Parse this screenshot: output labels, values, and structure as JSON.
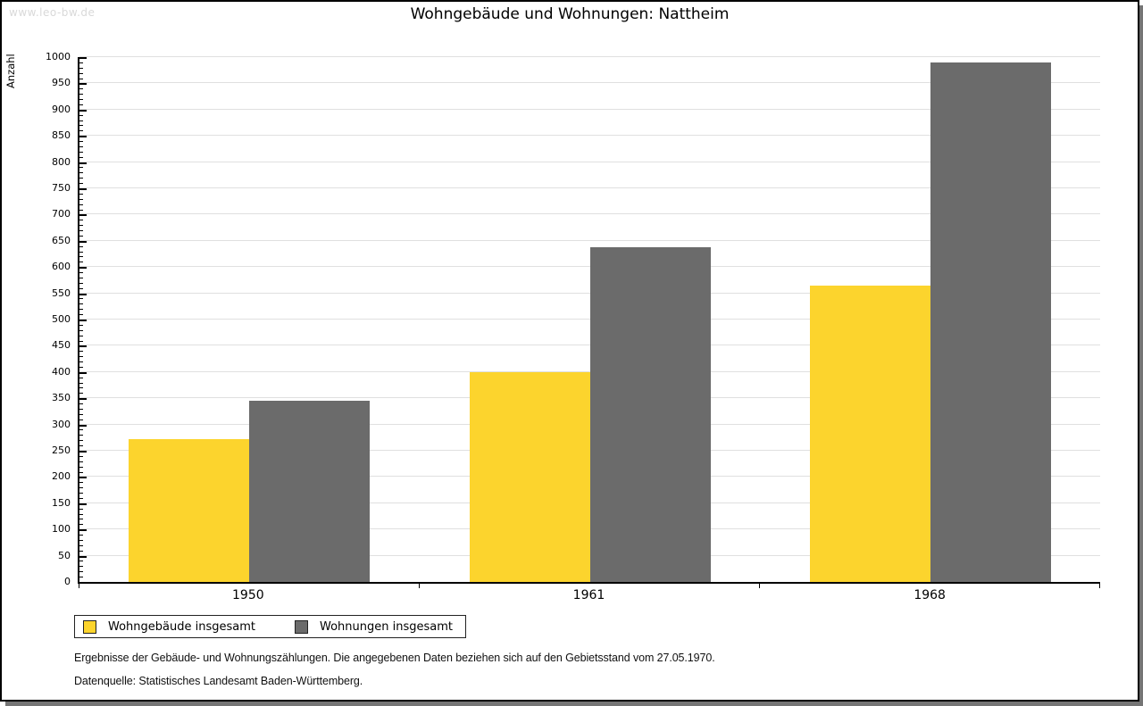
{
  "watermark": "www.leo-bw.de",
  "title": "Wohngebäude und Wohnungen: Nattheim",
  "chart_data": {
    "type": "bar",
    "title": "Wohngebäude und Wohnungen: Nattheim",
    "categories": [
      "1950",
      "1961",
      "1968"
    ],
    "series": [
      {
        "name": "Wohngebäude insgesamt",
        "color": "#FCD42D",
        "values": [
          272,
          400,
          565
        ]
      },
      {
        "name": "Wohnungen insgesamt",
        "color": "#6B6B6B",
        "values": [
          346,
          637,
          990
        ]
      }
    ],
    "xlabel": "",
    "ylabel": "Anzahl",
    "ylim": [
      0,
      1000
    ],
    "ytick_major": 50,
    "ytick_minor": 10,
    "grid": "horizontal-major",
    "gridline_color": "#E0E0E0",
    "axis_color": "#000000",
    "legend_position": "bottom-left"
  },
  "footer": {
    "line1": "Ergebnisse der Gebäude- und Wohnungszählungen. Die angegebenen Daten beziehen sich auf den Gebietsstand vom 27.05.1970.",
    "line2": "Datenquelle: Statistisches Landesamt Baden-Württemberg."
  }
}
